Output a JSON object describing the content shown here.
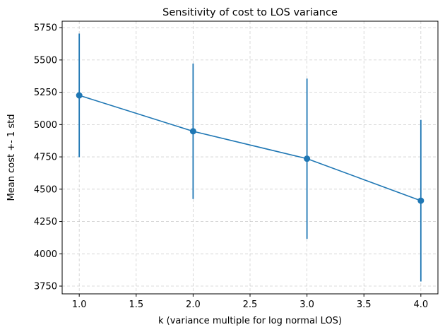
{
  "chart_data": {
    "type": "line",
    "title": "Sensitivity of cost to LOS variance",
    "xlabel": "k (variance multiple for log normal LOS)",
    "ylabel": "Mean cost +- 1 std",
    "xlim": [
      0.85,
      4.15
    ],
    "ylim": [
      3690,
      5800
    ],
    "xticks": [
      "1.0",
      "1.5",
      "2.0",
      "2.5",
      "3.0",
      "3.5",
      "4.0"
    ],
    "yticks": [
      "3750",
      "4000",
      "4250",
      "4500",
      "4750",
      "5000",
      "5250",
      "5500",
      "5750"
    ],
    "grid": true,
    "series": [
      {
        "x": [
          1.0,
          2.0,
          3.0,
          4.0
        ],
        "y": [
          5226,
          4948,
          4736,
          4411
        ],
        "std": [
          478,
          524,
          620,
          625
        ],
        "color": "#1f77b4",
        "marker": "circle",
        "errorbars": true
      }
    ]
  }
}
